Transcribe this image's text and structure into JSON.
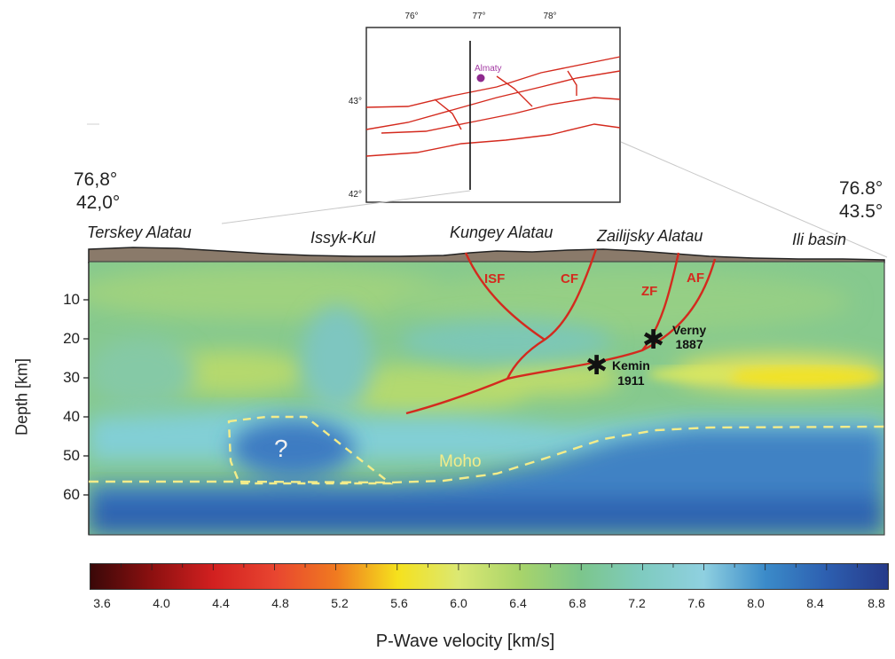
{
  "inset": {
    "lon_ticks": [
      "76°",
      "77°",
      "78°"
    ],
    "lat_ticks": [
      "43°",
      "42°"
    ],
    "city": "Almaty"
  },
  "endpoints": {
    "left_lon": "76,8°",
    "left_lat": "42,0°",
    "right_lon": "76.8°",
    "right_lat": "43.5°"
  },
  "regions": [
    "Terskey Alatau",
    "Issyk-Kul",
    "Kungey Alatau",
    "Zailijsky Alatau",
    "Ili basin"
  ],
  "section": {
    "ylabel": "Depth [km]",
    "depth_ticks": [
      "10",
      "20",
      "30",
      "40",
      "50",
      "60"
    ],
    "faults": [
      "ISF",
      "CF",
      "ZF",
      "AF"
    ],
    "quakes": [
      {
        "name": "Verny",
        "year": "1887"
      },
      {
        "name": "Kemin",
        "year": "1911"
      }
    ],
    "moho_label": "Moho",
    "anomaly_label": "?"
  },
  "colorbar": {
    "ticks": [
      "3.6",
      "4.0",
      "4.4",
      "4.8",
      "5.2",
      "5.6",
      "6.0",
      "6.4",
      "6.8",
      "7.2",
      "7.6",
      "8.0",
      "8.4",
      "8.8"
    ],
    "label": "P-Wave velocity [km/s]",
    "min": 3.6,
    "max": 8.8,
    "colors": [
      "#3a0808",
      "#8c1010",
      "#d22020",
      "#e84530",
      "#f07a20",
      "#f5e11d",
      "#dbe873",
      "#a8d46a",
      "#7cc68c",
      "#7fcbc0",
      "#8fd0e0",
      "#3b8bc9",
      "#2d5fb0",
      "#263a8a"
    ]
  },
  "fault_color": "#d42a1e"
}
